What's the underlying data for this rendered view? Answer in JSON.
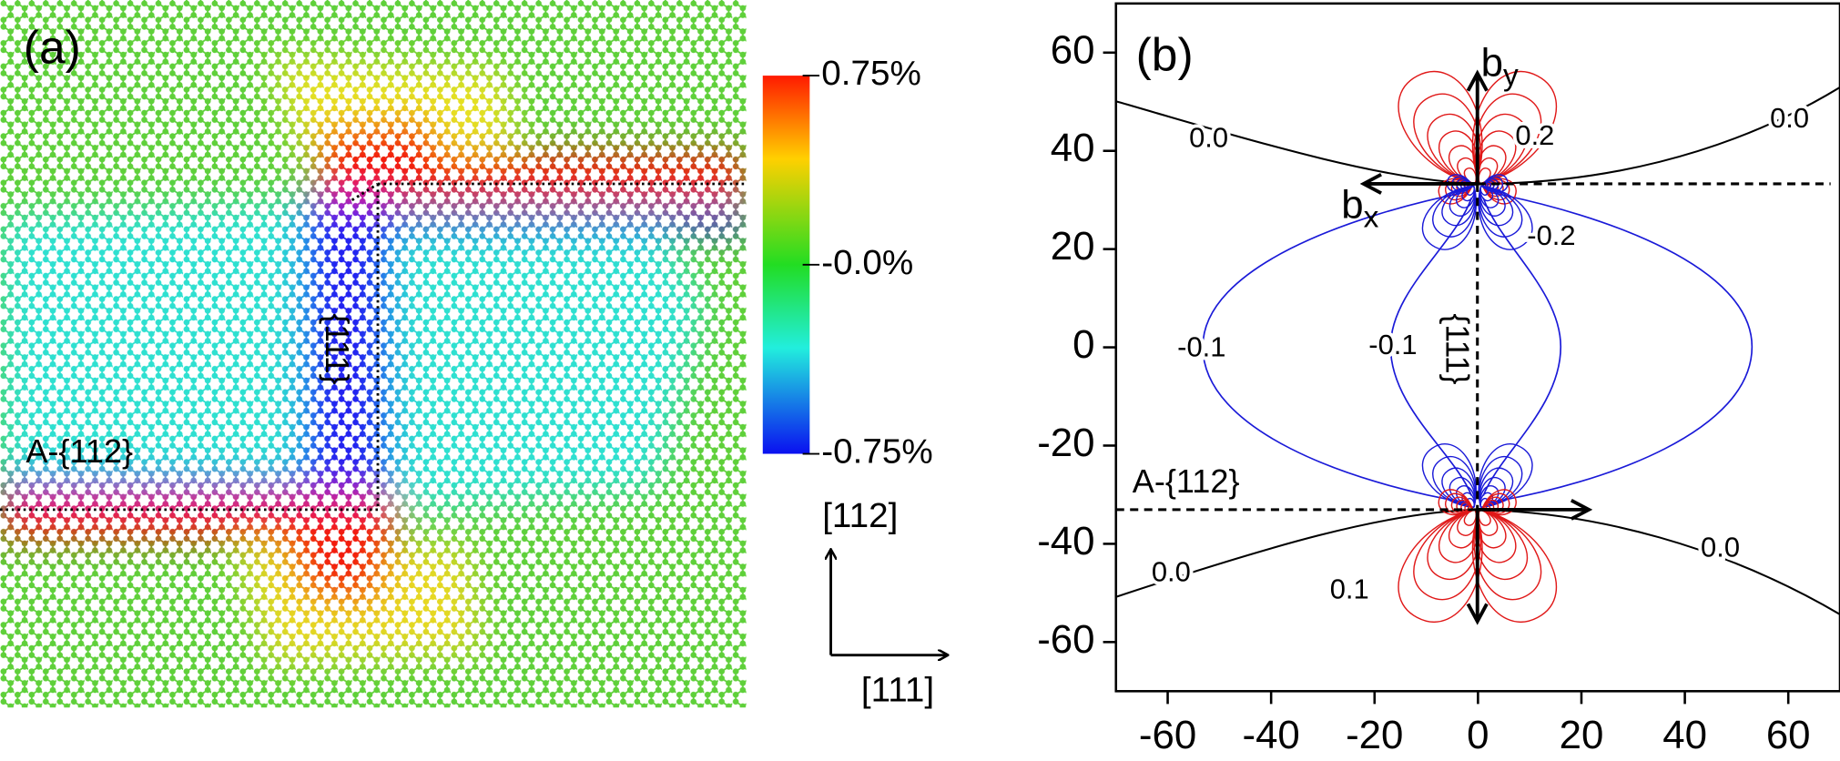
{
  "panel_a": {
    "label": "(a)",
    "annotation_interface": "A-{112}",
    "annotation_plane": "{111}",
    "colorbar": {
      "range": [
        -0.75,
        0.75
      ],
      "ticks": [
        {
          "value": 0.75,
          "label": "0.75%"
        },
        {
          "value": 0,
          "label": "-0.0%"
        },
        {
          "value": -0.75,
          "label": "-0.75%"
        }
      ]
    },
    "directions": {
      "vertical": "[112]",
      "horizontal": "[111]"
    }
  },
  "panel_b": {
    "label": "(b)",
    "xlim": [
      -70,
      70
    ],
    "ylim": [
      -70,
      70
    ],
    "xticks": [
      -60,
      -40,
      -20,
      0,
      20,
      40,
      60
    ],
    "yticks": [
      -60,
      -40,
      -20,
      0,
      20,
      40,
      60
    ],
    "burgers_x": {
      "main": "b",
      "sub": "x"
    },
    "burgers_y": {
      "main": "b",
      "sub": "y"
    },
    "annotation_interface": "A-{112}",
    "annotation_plane": "{111}",
    "contour_labels": [
      "0.0",
      "0.0",
      "0.2",
      "-0.2",
      "-0.1",
      "-0.1",
      "0.0",
      "0.0",
      "0.1"
    ]
  }
}
